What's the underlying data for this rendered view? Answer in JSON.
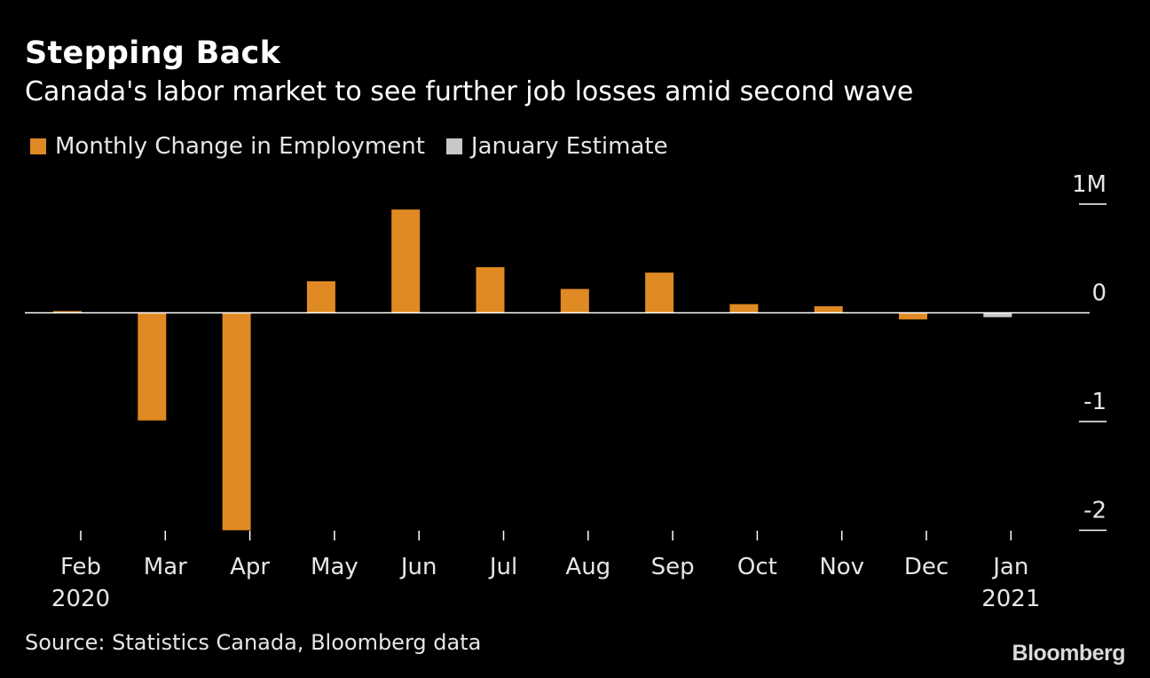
{
  "chart_data": {
    "type": "bar",
    "title": "Stepping Back",
    "subtitle": "Canada's labor market to see further job losses amid second wave",
    "categories": [
      "Feb",
      "Mar",
      "Apr",
      "May",
      "Jun",
      "Jul",
      "Aug",
      "Sep",
      "Oct",
      "Nov",
      "Dec",
      "Jan"
    ],
    "year_labels": [
      "2020",
      "",
      "",
      "",
      "",
      "",
      "",
      "",
      "",
      "",
      "",
      "2021"
    ],
    "series": [
      {
        "name": "Monthly Change in Employment",
        "color": "#e08a23",
        "values": [
          0.01,
          -0.99,
          -2.0,
          0.29,
          0.95,
          0.42,
          0.22,
          0.37,
          0.08,
          0.06,
          -0.06,
          null
        ]
      },
      {
        "name": "January Estimate",
        "color": "#c8c8c8",
        "values": [
          null,
          null,
          null,
          null,
          null,
          null,
          null,
          null,
          null,
          null,
          null,
          -0.04
        ]
      }
    ],
    "y_ticks": [
      1,
      0,
      -1,
      -2
    ],
    "y_tick_labels": [
      "1M",
      "0",
      "-1",
      "-2"
    ],
    "ylim": [
      -2,
      1
    ],
    "grid": false,
    "legend_position": "top-left"
  },
  "source": "Source: Statistics Canada, Bloomberg data",
  "logo": "Bloomberg"
}
